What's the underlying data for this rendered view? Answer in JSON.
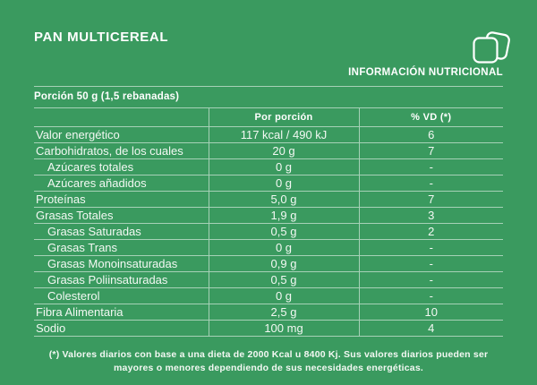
{
  "colors": {
    "background": "#3a9a5f",
    "text": "#f3f8f3",
    "line": "rgba(255,255,255,0.55)"
  },
  "header": {
    "title": "PAN MULTICEREAL",
    "panel_label": "INFORMACIÓN NUTRICIONAL",
    "icon": "bread-slices-icon"
  },
  "serving_line": "Porción 50 g (1,5 rebanadas)",
  "table": {
    "columns": [
      "",
      "Por porción",
      "% VD (*)"
    ],
    "rows": [
      {
        "label": "Valor energético",
        "per_portion": "117 kcal / 490 kJ",
        "pct_vd": "6",
        "indent": false
      },
      {
        "label": "Carbohidratos, de los cuales",
        "per_portion": "20 g",
        "pct_vd": "7",
        "indent": false
      },
      {
        "label": "Azúcares totales",
        "per_portion": "0 g",
        "pct_vd": "-",
        "indent": true
      },
      {
        "label": "Azúcares añadidos",
        "per_portion": "0 g",
        "pct_vd": "-",
        "indent": true
      },
      {
        "label": "Proteínas",
        "per_portion": "5,0 g",
        "pct_vd": "7",
        "indent": false
      },
      {
        "label": "Grasas Totales",
        "per_portion": "1,9 g",
        "pct_vd": "3",
        "indent": false
      },
      {
        "label": "Grasas Saturadas",
        "per_portion": "0,5 g",
        "pct_vd": "2",
        "indent": true
      },
      {
        "label": "Grasas Trans",
        "per_portion": "0 g",
        "pct_vd": "-",
        "indent": true
      },
      {
        "label": "Grasas Monoinsaturadas",
        "per_portion": "0,9 g",
        "pct_vd": "-",
        "indent": true
      },
      {
        "label": "Grasas Poliinsaturadas",
        "per_portion": "0,5 g",
        "pct_vd": "-",
        "indent": true
      },
      {
        "label": "Colesterol",
        "per_portion": "0 g",
        "pct_vd": "-",
        "indent": true
      },
      {
        "label": "Fibra Alimentaria",
        "per_portion": "2,5 g",
        "pct_vd": "10",
        "indent": false
      },
      {
        "label": "Sodio",
        "per_portion": "100 mg",
        "pct_vd": "4",
        "indent": false
      }
    ]
  },
  "footnote": {
    "line1": "(*) Valores diarios con base a una dieta de 2000 Kcal u 8400 Kj. Sus valores diarios pueden ser",
    "line2": "mayores o menores dependiendo de sus necesidades energéticas."
  }
}
